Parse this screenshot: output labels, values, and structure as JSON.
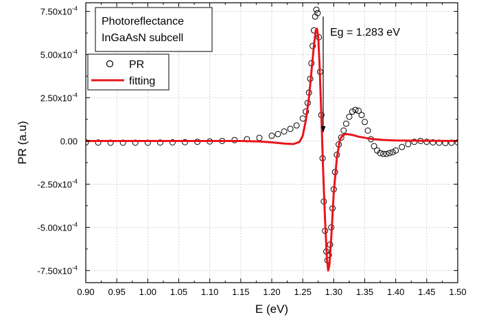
{
  "chart_data": {
    "type": "line",
    "xlabel": "E (eV)",
    "ylabel": "PR (a.u)",
    "xlim": [
      0.9,
      1.5
    ],
    "ylim": [
      -0.00082,
      0.0008
    ],
    "grid": true,
    "x_ticks": [
      0.9,
      0.95,
      1.0,
      1.05,
      1.1,
      1.15,
      1.2,
      1.25,
      1.3,
      1.35,
      1.4,
      1.45,
      1.5
    ],
    "x_tick_labels": [
      "0.90",
      "0.95",
      "1.00",
      "1.05",
      "1.10",
      "1.15",
      "1.20",
      "1.25",
      "1.30",
      "1.35",
      "1.40",
      "1.45",
      "1.50"
    ],
    "y_ticks": [
      -0.00075,
      -0.0005,
      -0.00025,
      0,
      0.00025,
      0.0005,
      0.00075
    ],
    "y_tick_labels": [
      {
        "mantissa": "-7.50x10",
        "exp": "-4"
      },
      {
        "mantissa": "-5.00x10",
        "exp": "-4"
      },
      {
        "mantissa": "-2.50x10",
        "exp": "-4"
      },
      {
        "mantissa": "0.00",
        "exp": ""
      },
      {
        "mantissa": "2.50x10",
        "exp": "-4"
      },
      {
        "mantissa": "5.00x10",
        "exp": "-4"
      },
      {
        "mantissa": "7.50x10",
        "exp": "-4"
      }
    ],
    "text_box": [
      "Photoreflectance",
      "InGaAsN subcell"
    ],
    "annotation": {
      "text": "Eg = 1.283 eV",
      "arrow_x": 1.283,
      "arrow_from_y": 0.00072,
      "arrow_to_y": 5e-05
    },
    "legend_placement": "upper-left",
    "series": [
      {
        "name": "PR",
        "style": "open-circle",
        "color": "#000000",
        "points": [
          [
            0.9,
            -8e-06
          ],
          [
            0.92,
            -9e-06
          ],
          [
            0.94,
            -1e-05
          ],
          [
            0.96,
            -1e-05
          ],
          [
            0.98,
            -1e-05
          ],
          [
            1.0,
            -1e-05
          ],
          [
            1.02,
            -9e-06
          ],
          [
            1.04,
            -8e-06
          ],
          [
            1.06,
            -7e-06
          ],
          [
            1.08,
            -5e-06
          ],
          [
            1.1,
            -3e-06
          ],
          [
            1.12,
            0.0
          ],
          [
            1.14,
            5e-06
          ],
          [
            1.16,
            1e-05
          ],
          [
            1.18,
            1.8e-05
          ],
          [
            1.2,
            3e-05
          ],
          [
            1.21,
            4e-05
          ],
          [
            1.22,
            5.5e-05
          ],
          [
            1.23,
            7e-05
          ],
          [
            1.24,
            9e-05
          ],
          [
            1.25,
            0.00013
          ],
          [
            1.255,
            0.00017
          ],
          [
            1.258,
            0.00022
          ],
          [
            1.26,
            0.00028
          ],
          [
            1.262,
            0.00036
          ],
          [
            1.264,
            0.00045
          ],
          [
            1.266,
            0.00055
          ],
          [
            1.268,
            0.00064
          ],
          [
            1.27,
            0.00072
          ],
          [
            1.272,
            0.00076
          ],
          [
            1.274,
            0.00074
          ],
          [
            1.276,
            0.0006
          ],
          [
            1.278,
            0.0004
          ],
          [
            1.28,
            0.00015
          ],
          [
            1.282,
            -0.0001
          ],
          [
            1.284,
            -0.00035
          ],
          [
            1.286,
            -0.00052
          ],
          [
            1.288,
            -0.00064
          ],
          [
            1.29,
            -0.00069
          ],
          [
            1.292,
            -0.00066
          ],
          [
            1.294,
            -0.0006
          ],
          [
            1.296,
            -0.0005
          ],
          [
            1.298,
            -0.00039
          ],
          [
            1.3,
            -0.00028
          ],
          [
            1.302,
            -0.00018
          ],
          [
            1.305,
            -8e-05
          ],
          [
            1.308,
            -2e-05
          ],
          [
            1.312,
            2e-05
          ],
          [
            1.316,
            6e-05
          ],
          [
            1.32,
            0.0001
          ],
          [
            1.325,
            0.00014
          ],
          [
            1.33,
            0.00017
          ],
          [
            1.335,
            0.00018
          ],
          [
            1.34,
            0.000175
          ],
          [
            1.345,
            0.00015
          ],
          [
            1.35,
            0.00011
          ],
          [
            1.355,
            6e-05
          ],
          [
            1.36,
            1e-05
          ],
          [
            1.365,
            -3e-05
          ],
          [
            1.37,
            -5.5e-05
          ],
          [
            1.375,
            -7e-05
          ],
          [
            1.38,
            -7.5e-05
          ],
          [
            1.385,
            -7.5e-05
          ],
          [
            1.39,
            -7e-05
          ],
          [
            1.395,
            -6.5e-05
          ],
          [
            1.4,
            -5.5e-05
          ],
          [
            1.41,
            -3.5e-05
          ],
          [
            1.42,
            -1.8e-05
          ],
          [
            1.43,
            -5e-06
          ],
          [
            1.44,
            0.0
          ],
          [
            1.45,
            -5e-06
          ],
          [
            1.46,
            -8e-06
          ],
          [
            1.47,
            -1e-05
          ],
          [
            1.48,
            -1.2e-05
          ],
          [
            1.49,
            -1e-05
          ],
          [
            1.5,
            -8e-06
          ]
        ]
      },
      {
        "name": "fitting",
        "style": "line",
        "color": "#e8141b",
        "points": [
          [
            0.9,
            0.0
          ],
          [
            0.95,
            0.0
          ],
          [
            1.0,
            0.0
          ],
          [
            1.05,
            0.0
          ],
          [
            1.1,
            0.0
          ],
          [
            1.15,
            0.0
          ],
          [
            1.18,
            -3e-06
          ],
          [
            1.2,
            -8e-06
          ],
          [
            1.22,
            -1.5e-05
          ],
          [
            1.235,
            -1.8e-05
          ],
          [
            1.245,
            -5e-06
          ],
          [
            1.25,
            3e-05
          ],
          [
            1.255,
            0.00012
          ],
          [
            1.26,
            0.00025
          ],
          [
            1.264,
            0.0004
          ],
          [
            1.268,
            0.00055
          ],
          [
            1.271,
            0.00064
          ],
          [
            1.273,
            0.00065
          ],
          [
            1.275,
            0.0006
          ],
          [
            1.277,
            0.00045
          ],
          [
            1.28,
            0.00015
          ],
          [
            1.283,
            -0.00018
          ],
          [
            1.286,
            -0.00046
          ],
          [
            1.289,
            -0.00068
          ],
          [
            1.291,
            -0.00075
          ],
          [
            1.293,
            -0.00072
          ],
          [
            1.296,
            -0.00056
          ],
          [
            1.3,
            -0.0003
          ],
          [
            1.305,
            -0.0001
          ],
          [
            1.31,
            1e-05
          ],
          [
            1.315,
            3.5e-05
          ],
          [
            1.32,
            4e-05
          ],
          [
            1.33,
            3.5e-05
          ],
          [
            1.34,
            2.5e-05
          ],
          [
            1.36,
            1.2e-05
          ],
          [
            1.38,
            6e-06
          ],
          [
            1.4,
            3e-06
          ],
          [
            1.45,
            1e-06
          ],
          [
            1.5,
            0.0
          ]
        ]
      }
    ]
  }
}
